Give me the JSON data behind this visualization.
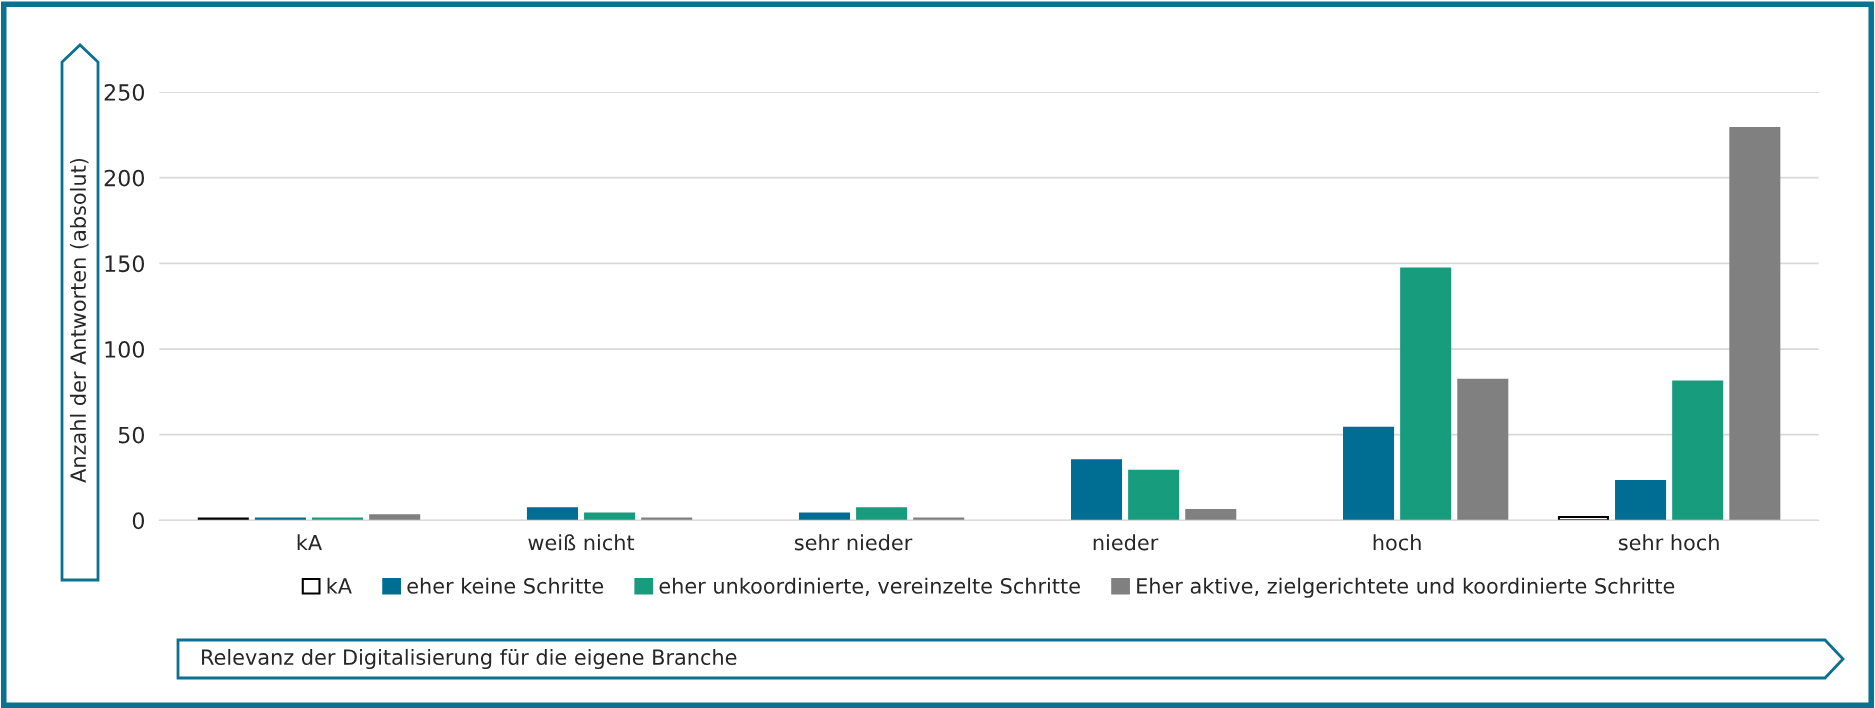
{
  "chart_data": {
    "type": "bar",
    "xlabel": "Relevanz der Digitalisierung für die eigene Branche",
    "ylabel": "Anzahl der Antworten (absolut)",
    "categories": [
      "kA",
      "weiß nicht",
      "sehr nieder",
      "nieder",
      "hoch",
      "sehr hoch"
    ],
    "series": [
      {
        "name": "kA",
        "color": "#ffffff",
        "values": [
          1,
          null,
          null,
          null,
          null,
          2
        ]
      },
      {
        "name": "eher keine Schritte",
        "color": "#006e93",
        "values": [
          1,
          7,
          4,
          35,
          54,
          23
        ]
      },
      {
        "name": "eher unkoordinierte, vereinzelte Schritte",
        "color": "#179c7d",
        "values": [
          1,
          4,
          7,
          29,
          147,
          81
        ]
      },
      {
        "name": "Eher aktive, zielgerichtete und koordinierte Schritte",
        "color": "#808080",
        "values": [
          3,
          1,
          1,
          6,
          82,
          229
        ]
      }
    ],
    "ylim": [
      0,
      250
    ],
    "yticks": [
      0,
      50,
      100,
      150,
      200,
      250
    ],
    "grid": "y",
    "legend": "bottom"
  }
}
